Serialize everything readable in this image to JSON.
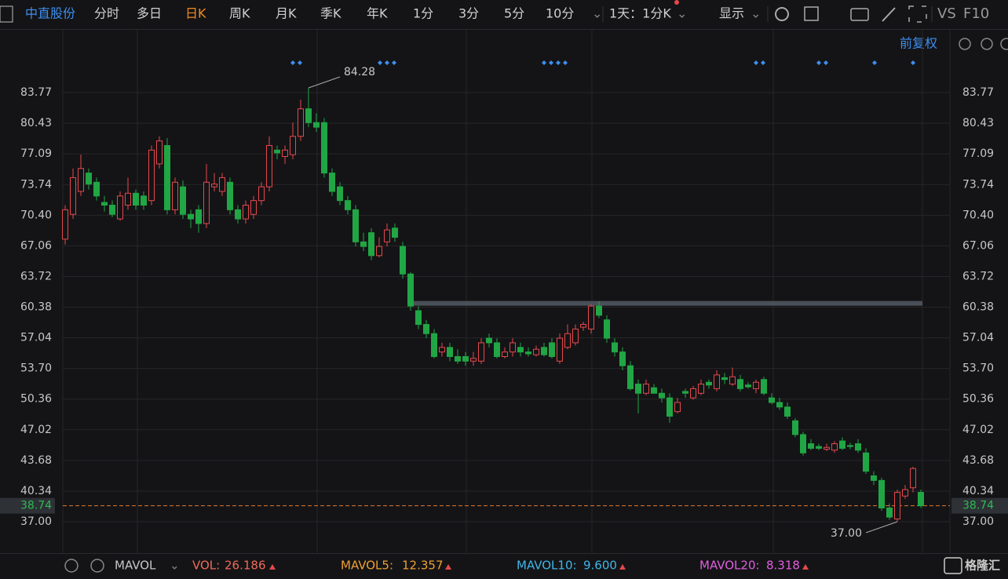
{
  "ui": {
    "stock_name": "中直股份",
    "tabs": [
      "分时",
      "多日",
      "日K",
      "周K",
      "月K",
      "季K",
      "年K",
      "1分",
      "3分",
      "5分",
      "10分"
    ],
    "period_select": "1天：1分K",
    "display": "显示",
    "compare": "VS",
    "f10": "F10",
    "adjust": "前复权",
    "indicator": "MAVOL",
    "vol": {
      "label": "VOL:",
      "value": "26.186"
    },
    "mavol5": {
      "label": "MAVOL5:",
      "value": "12.357"
    },
    "mavol10": {
      "label": "MAVOL10:",
      "value": "9.600"
    },
    "mavol20": {
      "label": "MAVOL20:",
      "value": "8.318"
    },
    "logo": "格隆汇"
  },
  "chart_data": {
    "type": "candlestick",
    "up_color": "#e5484d",
    "down_color": "#21a645",
    "ylim": [
      33.58,
      90.61
    ],
    "yticks": [
      83.77,
      80.43,
      77.09,
      73.74,
      {
        "value": 70.4,
        "label": "70.40"
      },
      67.06,
      63.72,
      60.38,
      57.04,
      {
        "value": 53.7,
        "label": "53.70"
      },
      50.36,
      47.02,
      43.68,
      40.34,
      {
        "value": 37,
        "label": "37.00"
      }
    ],
    "grid": true,
    "max_label": 84.28,
    "min_label": {
      "value": 37,
      "label": "37.00"
    },
    "last_price": 38.74,
    "drawn_line": 60.8,
    "candles": [
      [
        67.8,
        71.5,
        67.2,
        71
      ],
      [
        70.5,
        75.5,
        70,
        74.5
      ],
      [
        73,
        77,
        72.5,
        75.5
      ],
      [
        75,
        75.5,
        73.2,
        73.8
      ],
      [
        74,
        74.5,
        72,
        72.5
      ],
      [
        71.8,
        72.5,
        70.8,
        71.5
      ],
      [
        71.5,
        72,
        70.2,
        70.5
      ],
      [
        70,
        73,
        69.8,
        72.5
      ],
      [
        71.5,
        74.5,
        71,
        72.8
      ],
      [
        72.8,
        73.2,
        71,
        71.5
      ],
      [
        72.5,
        73,
        71,
        71.5
      ],
      [
        72,
        78,
        71.5,
        77.5
      ],
      [
        76,
        79,
        75.5,
        78.5
      ],
      [
        78,
        78.8,
        70.5,
        71
      ],
      [
        71,
        74.5,
        70.5,
        74
      ],
      [
        73.5,
        74.2,
        70,
        70.5
      ],
      [
        70.5,
        71,
        69,
        70
      ],
      [
        71,
        71.5,
        68.5,
        69.5
      ],
      [
        69.5,
        76,
        69,
        74
      ],
      [
        73.5,
        75,
        73,
        73.8
      ],
      [
        73,
        75,
        72.5,
        74.5
      ],
      [
        74,
        74.5,
        70.5,
        71
      ],
      [
        71,
        71.5,
        69.5,
        70
      ],
      [
        70,
        72,
        69.5,
        71.5
      ],
      [
        70.5,
        72.5,
        70,
        72
      ],
      [
        72,
        74,
        71.5,
        73.5
      ],
      [
        73.5,
        79,
        73,
        78
      ],
      [
        77.5,
        78,
        76.5,
        77.2
      ],
      [
        76.8,
        78,
        76,
        77.5
      ],
      [
        77,
        80.5,
        76.5,
        79
      ],
      [
        79,
        83,
        78.5,
        82
      ],
      [
        82,
        84.28,
        80,
        80.5
      ],
      [
        80.5,
        81.5,
        79.5,
        80
      ],
      [
        80.5,
        81,
        74.5,
        75
      ],
      [
        75,
        75.5,
        72.5,
        73
      ],
      [
        73.5,
        74,
        71.5,
        72
      ],
      [
        72,
        72.5,
        70.5,
        71
      ],
      [
        71,
        71.5,
        67,
        67.5
      ],
      [
        67.5,
        68.5,
        66.5,
        67
      ],
      [
        68.5,
        69,
        65.5,
        66
      ],
      [
        66,
        68,
        65.8,
        67
      ],
      [
        67.5,
        69.5,
        67,
        68.8
      ],
      [
        69,
        69.5,
        67.5,
        68
      ],
      [
        67,
        67.5,
        63.5,
        64
      ],
      [
        64,
        64.2,
        60,
        60.5
      ],
      [
        60,
        60.5,
        58,
        58.5
      ],
      [
        58.5,
        59,
        57,
        57.5
      ],
      [
        57.5,
        58,
        54.8,
        55
      ],
      [
        55.5,
        56.5,
        55,
        56
      ],
      [
        56,
        56.5,
        54.5,
        55
      ],
      [
        55,
        55.8,
        54.2,
        54.5
      ],
      [
        55,
        55.5,
        54,
        54.5
      ],
      [
        54.5,
        55.5,
        54,
        54.8
      ],
      [
        54.5,
        57,
        54.2,
        56.5
      ],
      [
        57,
        57.5,
        56,
        56.5
      ],
      [
        56.5,
        57,
        54.8,
        55
      ],
      [
        55,
        56,
        54.8,
        55.5
      ],
      [
        55.5,
        57,
        55,
        56.5
      ],
      [
        56,
        56.5,
        55,
        55.5
      ],
      [
        55.5,
        56,
        55,
        55.3
      ],
      [
        55.2,
        56.2,
        55,
        55.8
      ],
      [
        56,
        56.5,
        55,
        55.2
      ],
      [
        56.5,
        57,
        54.8,
        55
      ],
      [
        54.5,
        57.5,
        54.2,
        57
      ],
      [
        56,
        58.5,
        55.8,
        57.5
      ],
      [
        56.5,
        58.5,
        56.2,
        58
      ],
      [
        58.2,
        58.8,
        57.8,
        58.5
      ],
      [
        58,
        60.7,
        57.5,
        60.5
      ],
      [
        60.5,
        61,
        59.2,
        59.5
      ],
      [
        59,
        59.5,
        56.5,
        57
      ],
      [
        56.5,
        57,
        55,
        55.5
      ],
      [
        55.5,
        56,
        53.5,
        54
      ],
      [
        54,
        54.5,
        51.3,
        51.5
      ],
      [
        52,
        52.5,
        48.8,
        51
      ],
      [
        51,
        52.5,
        50.8,
        52
      ],
      [
        51.6,
        52,
        51,
        51
      ],
      [
        51,
        51.5,
        50,
        50.5
      ],
      [
        50.5,
        51,
        47.8,
        48.5
      ],
      [
        49,
        50.5,
        48.8,
        50
      ],
      [
        51.2,
        51.5,
        50.5,
        51
      ],
      [
        50.5,
        51.8,
        50.3,
        51.5
      ],
      [
        51,
        52.5,
        50.8,
        52
      ],
      [
        52.2,
        52.5,
        51.5,
        51.9
      ],
      [
        51.5,
        53.5,
        51.2,
        53
      ],
      [
        52.7,
        53.2,
        52,
        52.5
      ],
      [
        52,
        53.8,
        51.8,
        52.8
      ],
      [
        52.5,
        53,
        51.2,
        51.5
      ],
      [
        51.9,
        52.2,
        51.5,
        51.7
      ],
      [
        51.5,
        52.5,
        51,
        52.2
      ],
      [
        52.5,
        52.8,
        50.8,
        51
      ],
      [
        50.5,
        51,
        49.8,
        50
      ],
      [
        50,
        50.5,
        49.2,
        49.5
      ],
      [
        49.5,
        50,
        48.2,
        48.5
      ],
      [
        48,
        48.3,
        46.2,
        46.5
      ],
      [
        46.5,
        46.8,
        44.2,
        44.5
      ],
      [
        45.5,
        46,
        44.8,
        45
      ],
      [
        45.2,
        45.5,
        44.8,
        45
      ],
      [
        44.9,
        45.5,
        44.7,
        45.1
      ],
      [
        44.8,
        45.8,
        44.5,
        45.5
      ],
      [
        45.8,
        46.2,
        44.8,
        45
      ],
      [
        45.3,
        45.6,
        44.9,
        45.2
      ],
      [
        45.5,
        46,
        44.5,
        44.8
      ],
      [
        44.5,
        45,
        42.2,
        42.5
      ],
      [
        42,
        42.5,
        41,
        41.5
      ],
      [
        41.5,
        41.8,
        38.2,
        38.5
      ],
      [
        38.5,
        39,
        37.2,
        37.5
      ],
      [
        37.3,
        40.5,
        37,
        40.2
      ],
      [
        39.8,
        41,
        39.5,
        40.5
      ],
      [
        40.7,
        43,
        40.2,
        42.8
      ],
      [
        40.2,
        40.5,
        38.5,
        38.74
      ]
    ]
  }
}
